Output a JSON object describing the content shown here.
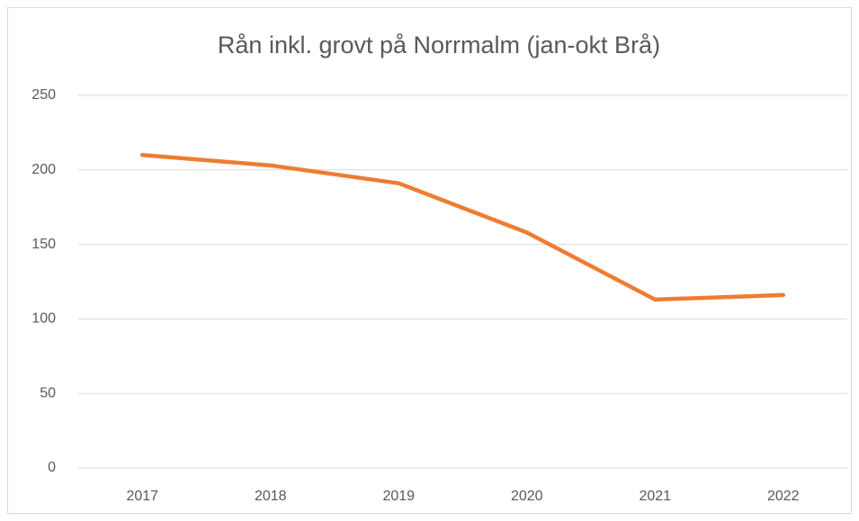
{
  "chart_data": {
    "type": "line",
    "title": "Rån inkl. grovt på Norrmalm (jan-okt Brå)",
    "categories": [
      "2017",
      "2018",
      "2019",
      "2020",
      "2021",
      "2022"
    ],
    "values": [
      210,
      203,
      191,
      158,
      113,
      116
    ],
    "color": "#ed7d31",
    "ylim": [
      0,
      250
    ],
    "yticks": [
      0,
      50,
      100,
      150,
      200,
      250
    ],
    "grid": true
  }
}
